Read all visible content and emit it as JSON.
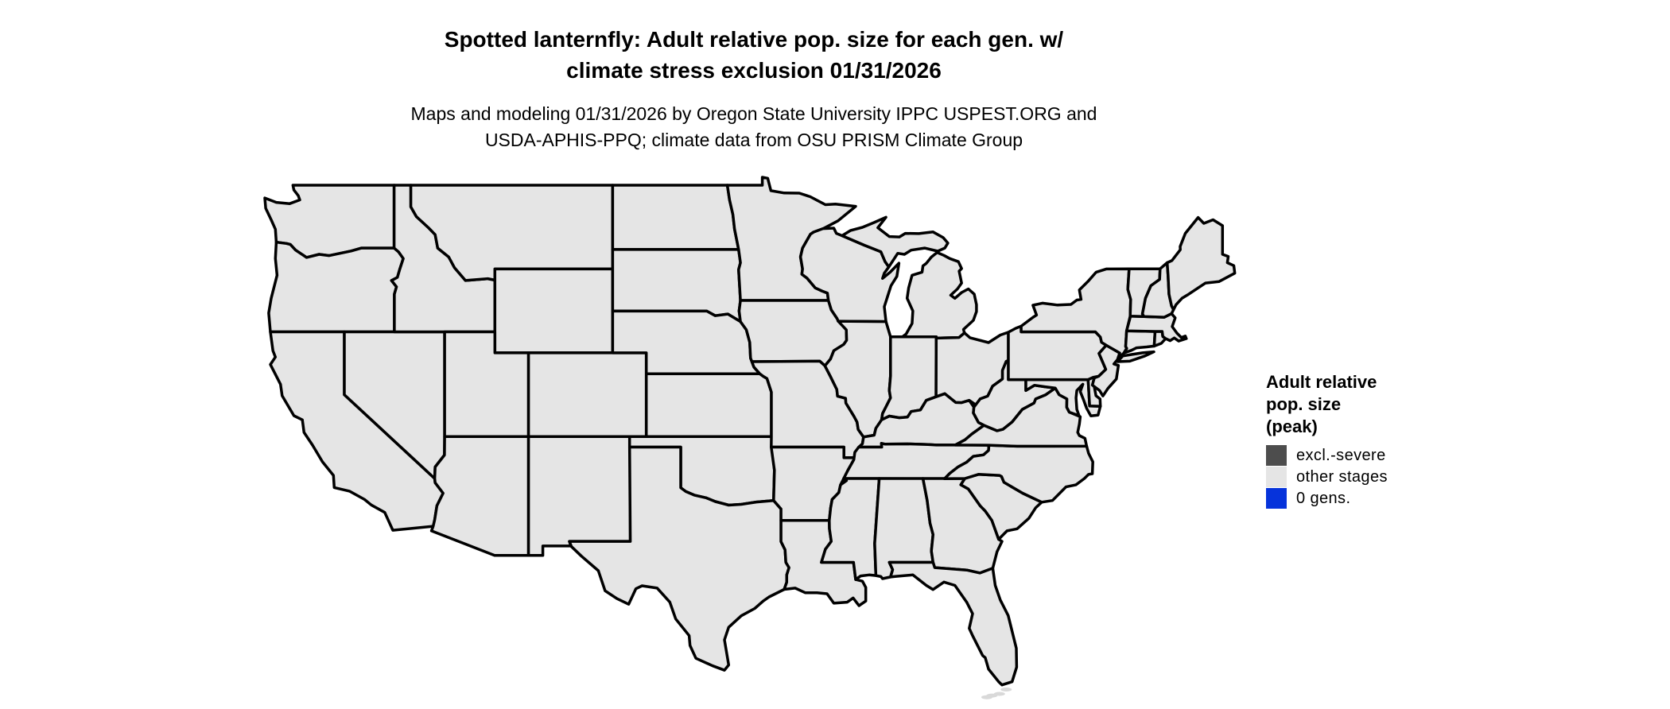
{
  "figure": {
    "title_line1": "Spotted lanternfly: Adult relative pop. size for each gen. w/",
    "title_line2": "climate stress exclusion 01/31/2026",
    "subtitle_line1": "Maps and modeling 01/31/2026 by Oregon State University IPPC USPEST.ORG and",
    "subtitle_line2": "USDA-APHIS-PPQ; climate data from OSU PRISM Climate Group"
  },
  "legend": {
    "title_line1": "Adult relative",
    "title_line2": "pop. size",
    "title_line3": "(peak)",
    "items": [
      {
        "label": "excl.-severe",
        "color": "#4d4d4d"
      },
      {
        "label": "other stages",
        "color": "#e5e5e5"
      },
      {
        "label": "0 gens.",
        "color": "#0633db"
      }
    ]
  },
  "map": {
    "name": "Contiguous United States",
    "fill_color": "#e5e5e5",
    "border_color": "#000000",
    "islands_color": "#d9d9d9",
    "background_color": "#ffffff",
    "all_states_status": "other stages"
  }
}
